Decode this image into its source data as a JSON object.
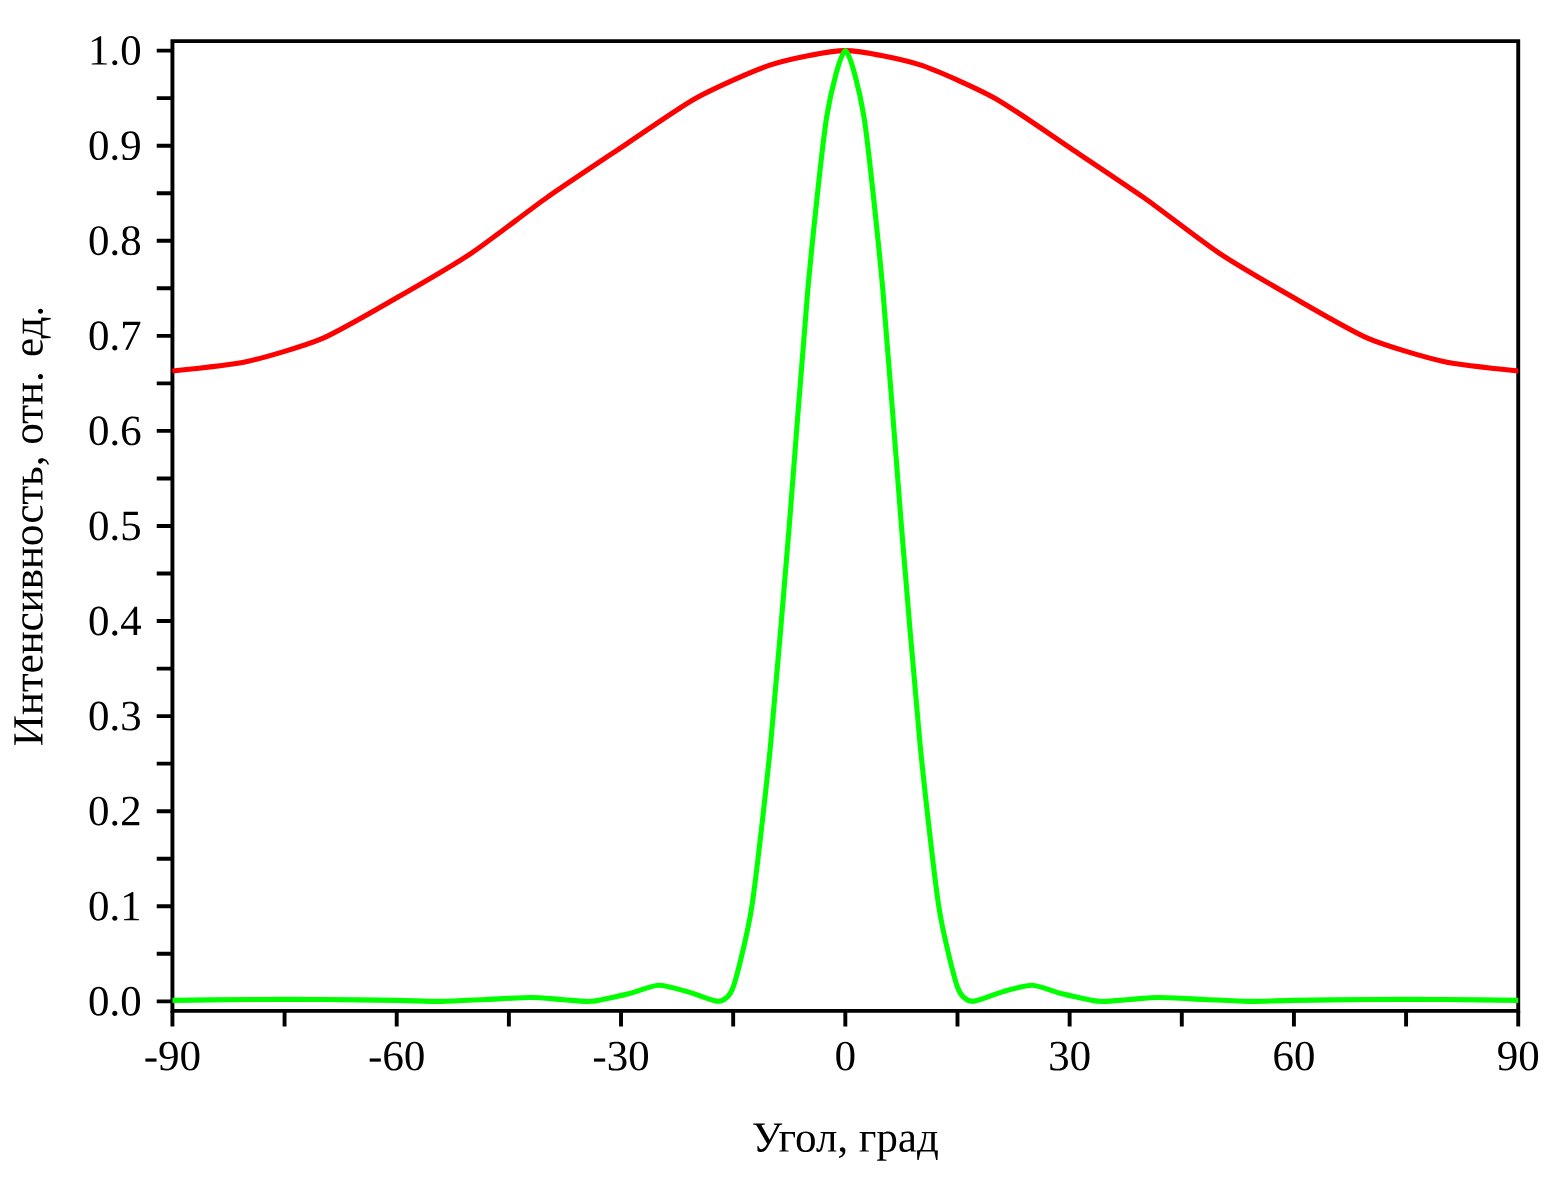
{
  "chart_data": {
    "type": "line",
    "xlabel": "Угол, град",
    "ylabel": "Интенсивность, отн. ед.",
    "xlim": [
      -90,
      90
    ],
    "ylim": [
      -0.01,
      1.01
    ],
    "xticks": [
      -90,
      {
        "value": -75,
        "label": null
      },
      -60,
      {
        "value": -45,
        "label": null
      },
      -30,
      {
        "value": -15,
        "label": null
      },
      0,
      {
        "value": 15,
        "label": null
      },
      30,
      {
        "value": 45,
        "label": null
      },
      60,
      {
        "value": 75,
        "label": null
      },
      90
    ],
    "yticks": [
      {
        "value": 0,
        "label": "0.0"
      },
      {
        "value": 0.05,
        "label": null
      },
      0.1,
      {
        "value": 0.15,
        "label": null
      },
      0.2,
      {
        "value": 0.25,
        "label": null
      },
      0.3,
      {
        "value": 0.35,
        "label": null
      },
      0.4,
      {
        "value": 0.45,
        "label": null
      },
      0.5,
      {
        "value": 0.55,
        "label": null
      },
      0.6,
      {
        "value": 0.65,
        "label": null
      },
      0.7,
      {
        "value": 0.75,
        "label": null
      },
      0.8,
      {
        "value": 0.85,
        "label": null
      },
      0.9,
      {
        "value": 0.95,
        "label": null
      },
      {
        "value": 1,
        "label": "1.0"
      }
    ],
    "marker": "none",
    "line_style": "solid",
    "series": [
      {
        "color": "#ff0000",
        "x": [
          -90,
          -80,
          -70,
          -60,
          -50,
          -40,
          -30,
          -20,
          -10,
          0,
          10,
          20,
          30,
          40,
          50,
          60,
          70,
          80,
          90
        ],
        "values": [
          0.663,
          0.673,
          0.697,
          0.74,
          0.787,
          0.845,
          0.898,
          0.95,
          0.985,
          1.0,
          0.985,
          0.95,
          0.898,
          0.845,
          0.787,
          0.74,
          0.697,
          0.673,
          0.663
        ]
      },
      {
        "color": "#00ff00",
        "x": [
          -90,
          -80,
          -70,
          -60,
          -54,
          -48,
          -42,
          -38,
          -34,
          -29,
          -25,
          -21,
          -17,
          -15,
          -12.5,
          -10,
          -7.5,
          -5,
          -2.5,
          0,
          2.5,
          5,
          7.5,
          10,
          12.5,
          15,
          17,
          21,
          25,
          29,
          34,
          38,
          42,
          48,
          54,
          60,
          70,
          80,
          90
        ],
        "values": [
          0.001,
          0.002,
          0.002,
          0.001,
          0,
          0.002,
          0.004,
          0.002,
          0,
          0.008,
          0.017,
          0.01,
          0,
          0.015,
          0.1,
          0.27,
          0.5,
          0.75,
          0.93,
          1.0,
          0.93,
          0.75,
          0.5,
          0.27,
          0.1,
          0.015,
          0,
          0.01,
          0.017,
          0.008,
          0,
          0.002,
          0.004,
          0.002,
          0,
          0.001,
          0.002,
          0.002,
          0.001
        ]
      }
    ]
  }
}
